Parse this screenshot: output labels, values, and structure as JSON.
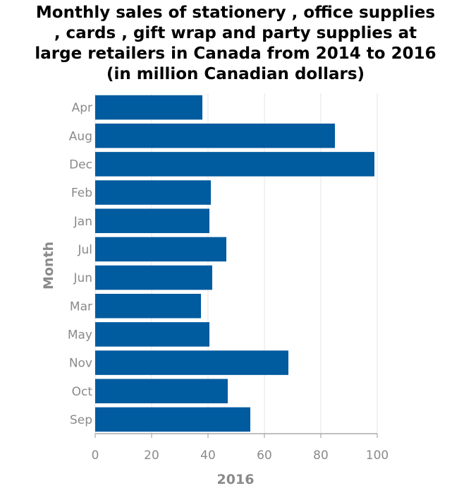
{
  "chart_data": {
    "type": "bar",
    "orientation": "horizontal",
    "title_lines": [
      "Monthly sales of stationery , office supplies",
      ", cards , gift wrap and party supplies at",
      "large retailers in Canada from 2014 to 2016",
      "(in million Canadian dollars)"
    ],
    "xlabel": "2016",
    "ylabel": "Month",
    "categories": [
      "Apr",
      "Aug",
      "Dec",
      "Feb",
      "Jan",
      "Jul",
      "Jun",
      "Mar",
      "May",
      "Nov",
      "Oct",
      "Sep"
    ],
    "values": [
      38,
      85,
      99,
      41,
      40.5,
      46.5,
      41.5,
      37.5,
      40.5,
      68.5,
      47,
      55
    ],
    "xlim": [
      0,
      100
    ],
    "xticks": [
      0,
      20,
      40,
      60,
      80,
      100
    ],
    "grid": true,
    "bar_color": "#005b9f",
    "grid_color": "#e6e6e6",
    "label_color": "#8a8a8a"
  }
}
